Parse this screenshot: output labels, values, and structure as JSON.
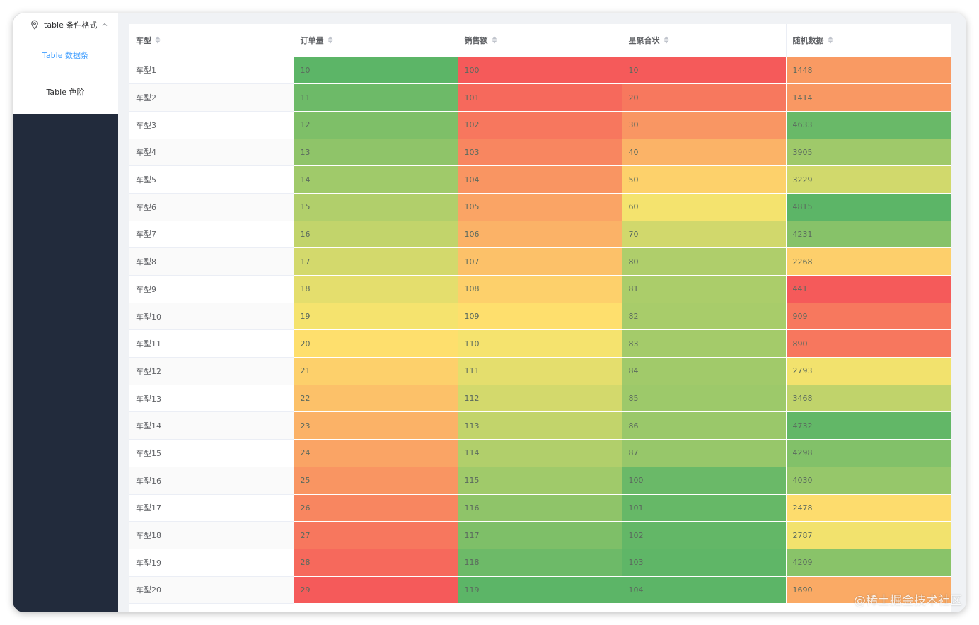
{
  "sidebar": {
    "submenu_title": "table 条件格式",
    "items": [
      {
        "label": "Table 数据条",
        "active": true
      },
      {
        "label": "Table 色阶",
        "active": false
      }
    ],
    "accent_color": "#409eff",
    "background": "#222b3c"
  },
  "table": {
    "columns": [
      "车型",
      "订单量",
      "销售额",
      "星聚合状",
      "随机数据"
    ],
    "rows": [
      [
        "车型1",
        "10",
        "100",
        "10",
        "1448"
      ],
      [
        "车型2",
        "11",
        "101",
        "20",
        "1414"
      ],
      [
        "车型3",
        "12",
        "102",
        "30",
        "4633"
      ],
      [
        "车型4",
        "13",
        "103",
        "40",
        "3905"
      ],
      [
        "车型5",
        "14",
        "104",
        "50",
        "3229"
      ],
      [
        "车型6",
        "15",
        "105",
        "60",
        "4815"
      ],
      [
        "车型7",
        "16",
        "106",
        "70",
        "4231"
      ],
      [
        "车型8",
        "17",
        "107",
        "80",
        "2268"
      ],
      [
        "车型9",
        "18",
        "108",
        "81",
        "441"
      ],
      [
        "车型10",
        "19",
        "109",
        "82",
        "909"
      ],
      [
        "车型11",
        "20",
        "110",
        "83",
        "890"
      ],
      [
        "车型12",
        "21",
        "111",
        "84",
        "2793"
      ],
      [
        "车型13",
        "22",
        "112",
        "85",
        "3468"
      ],
      [
        "车型14",
        "23",
        "113",
        "86",
        "4732"
      ],
      [
        "车型15",
        "24",
        "114",
        "87",
        "4298"
      ],
      [
        "车型16",
        "25",
        "115",
        "100",
        "4030"
      ],
      [
        "车型17",
        "26",
        "116",
        "101",
        "2478"
      ],
      [
        "车型18",
        "27",
        "117",
        "102",
        "2787"
      ],
      [
        "车型19",
        "28",
        "118",
        "103",
        "4209"
      ],
      [
        "车型20",
        "29",
        "119",
        "104",
        "1690"
      ]
    ],
    "color_scale": {
      "low": "#5cb567",
      "mid": "#fee66e",
      "high": "#f55a5a",
      "directions": [
        "low-green",
        "low-red",
        "low-red",
        "high-green"
      ]
    }
  },
  "watermark": "@稀土掘金技术社区"
}
